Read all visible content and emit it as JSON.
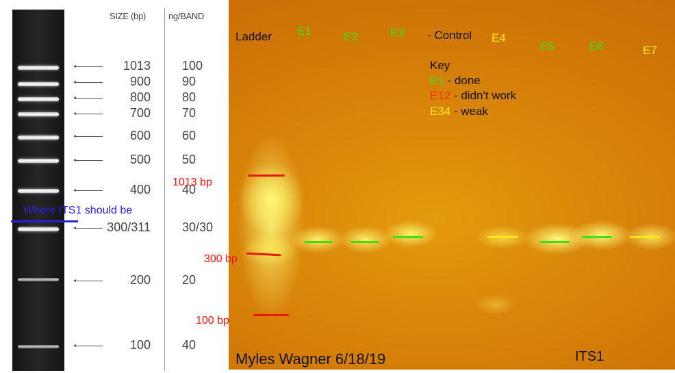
{
  "reference": {
    "size_header": "SIZE (bp)",
    "ng_header": "ng/BAND",
    "rows": [
      {
        "size": "1013",
        "ng": "100"
      },
      {
        "size": "900",
        "ng": "90"
      },
      {
        "size": "800",
        "ng": "80"
      },
      {
        "size": "700",
        "ng": "70"
      },
      {
        "size": "600",
        "ng": "60"
      },
      {
        "size": "500",
        "ng": "50"
      },
      {
        "size": "400",
        "ng": "40"
      },
      {
        "size": "300/311",
        "ng": "30/30"
      },
      {
        "size": "200",
        "ng": "20"
      },
      {
        "size": "100",
        "ng": "40"
      }
    ],
    "its1_note": "Where ITS1 should be"
  },
  "gel": {
    "ladder_label": "Ladder",
    "lanes": [
      {
        "label": "E1",
        "color": "#3ee01a"
      },
      {
        "label": "E2",
        "color": "#3ee01a"
      },
      {
        "label": "E3",
        "color": "#3ee01a"
      },
      {
        "label": "E4",
        "color": "#ffe81a"
      },
      {
        "label": "E5",
        "color": "#3ee01a"
      },
      {
        "label": "E6",
        "color": "#3ee01a"
      },
      {
        "label": "E7",
        "color": "#ffe81a"
      }
    ],
    "control_label": "- Control",
    "key": {
      "title": "Key",
      "items": [
        {
          "code": "E1",
          "text": " - done",
          "color": "#3ee01a"
        },
        {
          "code": "E12",
          "text": " - didn't work",
          "color": "#ff2a10"
        },
        {
          "code": "E34",
          "text": " - weak",
          "color": "#ffe81a"
        }
      ]
    },
    "bp_labels": [
      "1013 bp",
      "300 bp",
      "100 bp"
    ],
    "author": "Myles Wagner 6/18/19",
    "gene": "ITS1"
  },
  "colors": {
    "done": "#3ee01a",
    "failed": "#ff2a10",
    "weak": "#ffe81a",
    "its1_marker": "#2a20d8",
    "bp_marker": "#e8160f"
  }
}
